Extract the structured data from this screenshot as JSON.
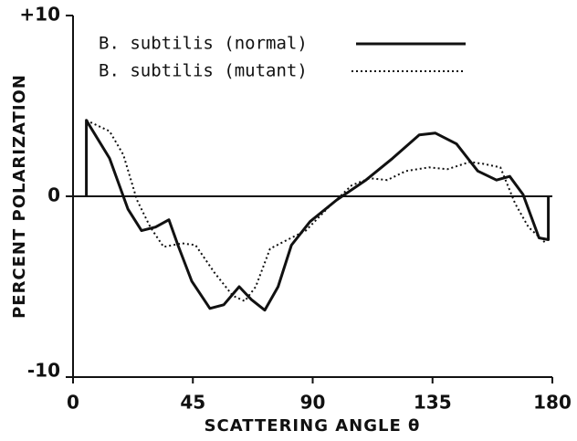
{
  "chart_data": {
    "type": "line",
    "x_label": "SCATTERING ANGLE θ",
    "y_label": "PERCENT POLARIZATION",
    "xlim": [
      0,
      180
    ],
    "xticks": [
      0,
      45,
      90,
      135,
      180
    ],
    "ylim": [
      -10,
      10
    ],
    "yticks": [
      {
        "value": 10,
        "label": "+10"
      },
      0,
      -10
    ],
    "zero_line": true,
    "series": [
      {
        "name": "B. subtilis (normal)",
        "color": "#111111",
        "style": "solid",
        "x": [
          5,
          5,
          13.7,
          20.6,
          25.7,
          31,
          36,
          39.4,
          44.6,
          51.4,
          56.6,
          62.4,
          66.9,
          72,
          77,
          82,
          89,
          99,
          110,
          120,
          130,
          136,
          144,
          152,
          159,
          164,
          169,
          175,
          178.5,
          178.5
        ],
        "values": [
          0,
          4.2,
          2.1,
          -0.7,
          -1.9,
          -1.7,
          -1.3,
          -2.7,
          -4.7,
          -6.2,
          -6.0,
          -5.0,
          -5.7,
          -6.3,
          -5.0,
          -2.7,
          -1.4,
          -0.2,
          0.9,
          2.1,
          3.4,
          3.5,
          2.9,
          1.4,
          0.9,
          1.1,
          0.1,
          -2.3,
          -2.4,
          0
        ]
      },
      {
        "name": "B. subtilis (mutant)",
        "color": "#111111",
        "style": "dotted",
        "x": [
          5,
          13.7,
          18.9,
          24,
          29,
          34,
          41,
          46,
          53,
          60,
          64.5,
          68.6,
          74,
          80.6,
          87.4,
          96,
          104.6,
          111.4,
          118,
          125,
          133.7,
          140.6,
          149,
          154,
          160.5,
          166,
          171,
          177.6
        ],
        "values": [
          4.2,
          3.6,
          2.3,
          -0.2,
          -1.7,
          -2.8,
          -2.6,
          -2.7,
          -4.2,
          -5.5,
          -5.8,
          -5.0,
          -2.9,
          -2.4,
          -1.9,
          -0.6,
          0.6,
          1.0,
          0.9,
          1.4,
          1.6,
          1.5,
          1.9,
          1.8,
          1.6,
          -0.4,
          -1.7,
          -2.6
        ]
      }
    ]
  }
}
